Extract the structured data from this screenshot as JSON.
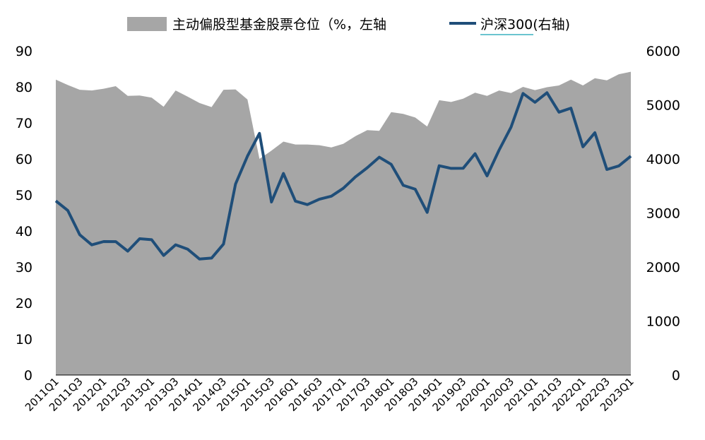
{
  "chart_data": {
    "type": "area+line",
    "title": "",
    "categories": [
      "2011Q1",
      "2011Q2",
      "2011Q3",
      "2011Q4",
      "2012Q1",
      "2012Q2",
      "2012Q3",
      "2012Q4",
      "2013Q1",
      "2013Q2",
      "2013Q3",
      "2013Q4",
      "2014Q1",
      "2014Q2",
      "2014Q3",
      "2014Q4",
      "2015Q1",
      "2015Q2",
      "2015Q3",
      "2015Q4",
      "2016Q1",
      "2016Q2",
      "2016Q3",
      "2016Q4",
      "2017Q1",
      "2017Q2",
      "2017Q3",
      "2017Q4",
      "2018Q1",
      "2018Q2",
      "2018Q3",
      "2018Q4",
      "2019Q1",
      "2019Q2",
      "2019Q3",
      "2019Q4",
      "2020Q1",
      "2020Q2",
      "2020Q3",
      "2020Q4",
      "2021Q1",
      "2021Q2",
      "2021Q3",
      "2021Q4",
      "2022Q1",
      "2022Q2",
      "2022Q3",
      "2022Q4",
      "2023Q1"
    ],
    "x_tick_labels": [
      "2011Q1",
      "2011Q3",
      "2012Q1",
      "2012Q3",
      "2013Q1",
      "2013Q3",
      "2014Q1",
      "2014Q3",
      "2015Q1",
      "2015Q3",
      "2016Q1",
      "2016Q3",
      "2017Q1",
      "2017Q3",
      "2018Q1",
      "2018Q3",
      "2019Q1",
      "2019Q3",
      "2020Q1",
      "2020Q3",
      "2021Q1",
      "2021Q3",
      "2022Q1",
      "2022Q3",
      "2023Q1"
    ],
    "series": [
      {
        "name": "主动偏股型基金股票仓位（%，左轴",
        "type": "area",
        "axis": "left",
        "color": "#a6a6a6",
        "values": [
          82.0,
          80.5,
          79.2,
          79.0,
          79.5,
          80.2,
          77.5,
          77.6,
          77.0,
          74.5,
          79.0,
          77.3,
          75.5,
          74.4,
          79.2,
          79.3,
          76.5,
          60.0,
          62.3,
          64.8,
          64.0,
          64.0,
          63.8,
          63.2,
          64.2,
          66.3,
          68.0,
          67.8,
          73.0,
          72.5,
          71.5,
          69.0,
          76.3,
          75.8,
          76.7,
          78.4,
          77.5,
          79.0,
          78.3,
          80.0,
          79.1,
          79.9,
          80.4,
          82.0,
          80.4,
          82.4,
          81.8,
          83.5,
          84.2
        ]
      },
      {
        "name": "沪深300(右轴)",
        "type": "line",
        "axis": "right",
        "color": "#1f4e79",
        "values": [
          3223,
          3045,
          2596,
          2409,
          2470,
          2469,
          2293,
          2523,
          2505,
          2213,
          2410,
          2331,
          2146,
          2165,
          2423,
          3534,
          4051,
          4473,
          3203,
          3731,
          3218,
          3154,
          3253,
          3310,
          3456,
          3666,
          3837,
          4031,
          3899,
          3511,
          3439,
          3011,
          3873,
          3825,
          3826,
          4097,
          3686,
          4163,
          4587,
          5212,
          5048,
          5225,
          4866,
          4940,
          4223,
          4485,
          3804,
          3871,
          4051
        ]
      }
    ],
    "y_left": {
      "min": 0,
      "max": 90,
      "ticks": [
        "0",
        "10",
        "20",
        "30",
        "40",
        "50",
        "60",
        "70",
        "80",
        "90"
      ]
    },
    "y_right": {
      "min": 0,
      "max": 6000,
      "ticks": [
        "0",
        "1000",
        "2000",
        "3000",
        "4000",
        "5000",
        "6000"
      ]
    },
    "legend": {
      "position": "top",
      "items": [
        "主动偏股型基金股票仓位（%，左轴",
        "沪深300(右轴)"
      ]
    }
  }
}
